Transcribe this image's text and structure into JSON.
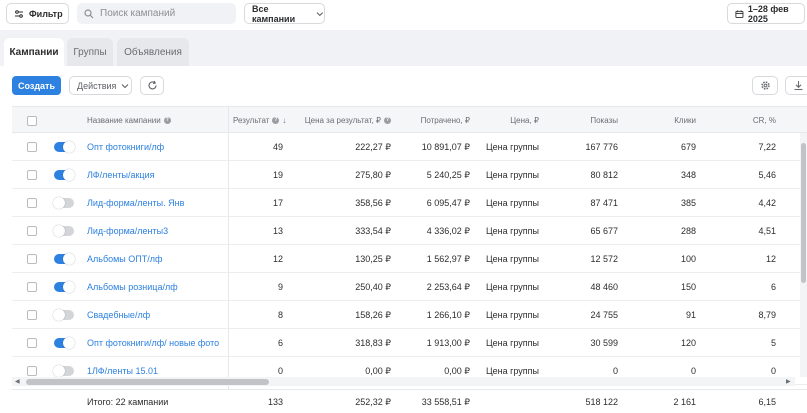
{
  "toolbar": {
    "filter_label": "Фильтр",
    "search_placeholder": "Поиск кампаний",
    "campaigns_select": "Все кампании",
    "date_range": "1–28 фев 2025"
  },
  "tabs": [
    {
      "label": "Кампании",
      "active": true
    },
    {
      "label": "Группы",
      "active": false
    },
    {
      "label": "Объявления",
      "active": false
    }
  ],
  "actions": {
    "create_label": "Создать",
    "actions_label": "Действия"
  },
  "columns": {
    "name": "Название кампании",
    "result": "Результат",
    "cost_per_result": "Цена за результат, ₽",
    "spent": "Потрачено, ₽",
    "price": "Цена, ₽",
    "impressions": "Показы",
    "clicks": "Клики",
    "cr": "CR, %"
  },
  "rows": [
    {
      "enabled": true,
      "name": "Опт фотокниги/лф",
      "result": "49",
      "cpr": "222,27 ₽",
      "spent": "10 891,07 ₽",
      "price": "Цена группы",
      "impressions": "167 776",
      "clicks": "679",
      "cr": "7,22"
    },
    {
      "enabled": true,
      "name": "ЛФ/ленты/акция",
      "result": "19",
      "cpr": "275,80 ₽",
      "spent": "5 240,25 ₽",
      "price": "Цена группы",
      "impressions": "80 812",
      "clicks": "348",
      "cr": "5,46"
    },
    {
      "enabled": false,
      "name": "Лид-форма/ленты. Янв",
      "result": "17",
      "cpr": "358,56 ₽",
      "spent": "6 095,47 ₽",
      "price": "Цена группы",
      "impressions": "87 471",
      "clicks": "385",
      "cr": "4,42"
    },
    {
      "enabled": false,
      "name": "Лид-форма/ленты3",
      "result": "13",
      "cpr": "333,54 ₽",
      "spent": "4 336,02 ₽",
      "price": "Цена группы",
      "impressions": "65 677",
      "clicks": "288",
      "cr": "4,51"
    },
    {
      "enabled": true,
      "name": "Альбомы ОПТ/лф",
      "result": "12",
      "cpr": "130,25 ₽",
      "spent": "1 562,97 ₽",
      "price": "Цена группы",
      "impressions": "12 572",
      "clicks": "100",
      "cr": "12"
    },
    {
      "enabled": true,
      "name": "Альбомы розница/лф",
      "result": "9",
      "cpr": "250,40 ₽",
      "spent": "2 253,64 ₽",
      "price": "Цена группы",
      "impressions": "48 460",
      "clicks": "150",
      "cr": "6"
    },
    {
      "enabled": false,
      "name": "Свадебные/лф",
      "result": "8",
      "cpr": "158,26 ₽",
      "spent": "1 266,10 ₽",
      "price": "Цена группы",
      "impressions": "24 755",
      "clicks": "91",
      "cr": "8,79"
    },
    {
      "enabled": true,
      "name": "Опт фотокниги/лф/ новые фото",
      "result": "6",
      "cpr": "318,83 ₽",
      "spent": "1 913,00 ₽",
      "price": "Цена группы",
      "impressions": "30 599",
      "clicks": "120",
      "cr": "5"
    },
    {
      "enabled": false,
      "name": "1ЛФ/ленты 15.01",
      "result": "0",
      "cpr": "0,00 ₽",
      "spent": "0,00 ₽",
      "price": "Цена группы",
      "impressions": "0",
      "clicks": "0",
      "cr": "0"
    }
  ],
  "totals": {
    "label": "Итого: 22 кампании",
    "result": "133",
    "cpr": "252,32 ₽",
    "spent": "33 558,51 ₽",
    "impressions": "518 122",
    "clicks": "2 161",
    "cr": "6,15"
  },
  "colors": {
    "accent": "#2d81e0",
    "tab_bg": "#f0f2f5",
    "toggle_off": "#d3d5d9"
  },
  "icons": {
    "filter": "sliders-icon",
    "search": "search-icon",
    "dropdown": "chevron-down-icon",
    "date": "calendar-icon",
    "refresh": "refresh-icon",
    "settings": "gear-icon",
    "download": "download-icon",
    "help": "question-icon",
    "sort": "sort-down-icon"
  }
}
